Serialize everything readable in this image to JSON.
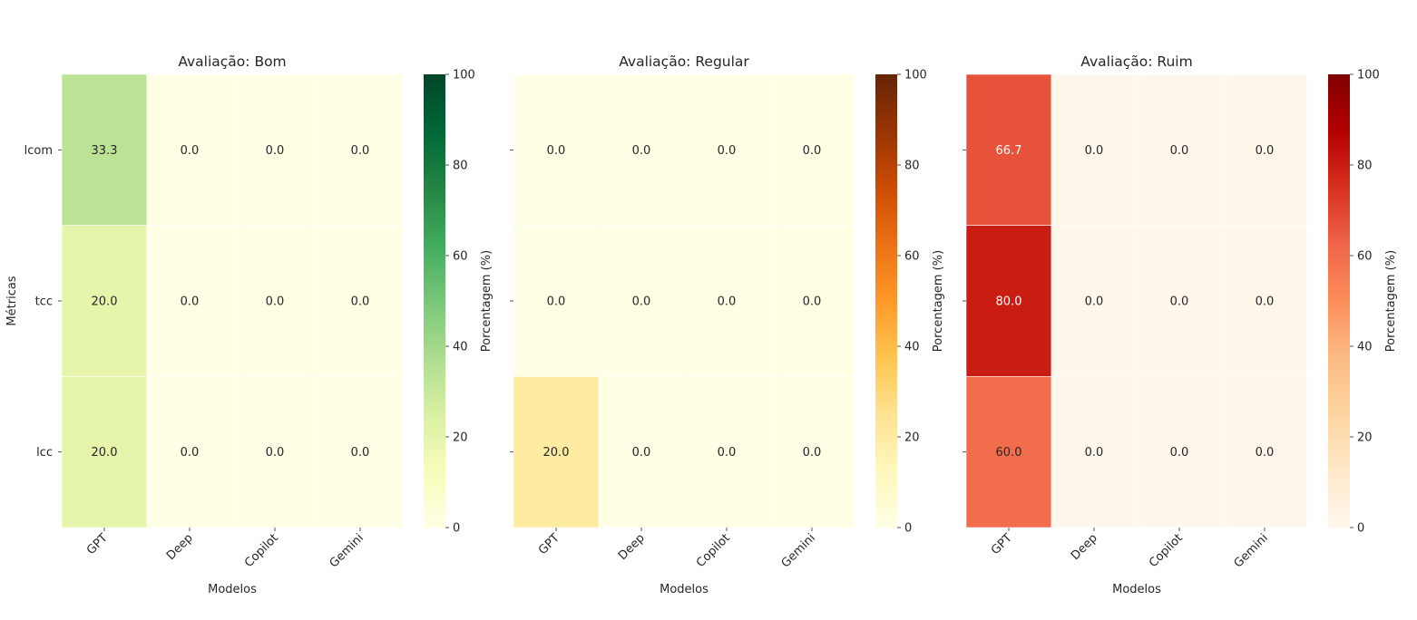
{
  "chart_data": [
    {
      "type": "heatmap",
      "title": "Avaliação: Bom",
      "xlabel": "Modelos",
      "ylabel": "Métricas",
      "x_categories": [
        "GPT",
        "Deep",
        "Copilot",
        "Gemini"
      ],
      "y_categories": [
        "lcom",
        "tcc",
        "lcc"
      ],
      "values": [
        [
          33.3,
          0.0,
          0.0,
          0.0
        ],
        [
          20.0,
          0.0,
          0.0,
          0.0
        ],
        [
          20.0,
          0.0,
          0.0,
          0.0
        ]
      ],
      "colormap": "YlGn",
      "colorbar": {
        "label": "Porcentagem (%)",
        "range": [
          0,
          100
        ],
        "ticks": [
          0,
          20,
          40,
          60,
          80,
          100
        ]
      },
      "value_format": "0.0"
    },
    {
      "type": "heatmap",
      "title": "Avaliação: Regular",
      "xlabel": "Modelos",
      "ylabel": "",
      "x_categories": [
        "GPT",
        "Deep",
        "Copilot",
        "Gemini"
      ],
      "y_categories": [
        "lcom",
        "tcc",
        "lcc"
      ],
      "values": [
        [
          0.0,
          0.0,
          0.0,
          0.0
        ],
        [
          0.0,
          0.0,
          0.0,
          0.0
        ],
        [
          20.0,
          0.0,
          0.0,
          0.0
        ]
      ],
      "colormap": "YlOrBr",
      "colorbar": {
        "label": "Porcentagem (%)",
        "range": [
          0,
          100
        ],
        "ticks": [
          0,
          20,
          40,
          60,
          80,
          100
        ]
      },
      "value_format": "0.0"
    },
    {
      "type": "heatmap",
      "title": "Avaliação: Ruim",
      "xlabel": "Modelos",
      "ylabel": "",
      "x_categories": [
        "GPT",
        "Deep",
        "Copilot",
        "Gemini"
      ],
      "y_categories": [
        "lcom",
        "tcc",
        "lcc"
      ],
      "values": [
        [
          66.7,
          0.0,
          0.0,
          0.0
        ],
        [
          80.0,
          0.0,
          0.0,
          0.0
        ],
        [
          60.0,
          0.0,
          0.0,
          0.0
        ]
      ],
      "colormap": "OrRd",
      "colorbar": {
        "label": "Porcentagem (%)",
        "range": [
          0,
          100
        ],
        "ticks": [
          0,
          20,
          40,
          60,
          80,
          100
        ]
      },
      "value_format": "0.0"
    }
  ],
  "colormaps": {
    "YlGn": [
      "#ffffe5",
      "#f7fcb9",
      "#d9f0a3",
      "#addd8e",
      "#78c679",
      "#41ab5d",
      "#238443",
      "#006837",
      "#004529"
    ],
    "YlOrBr": [
      "#ffffe5",
      "#fff7bc",
      "#fee391",
      "#fec44f",
      "#fe9929",
      "#ec7014",
      "#cc4c02",
      "#993404",
      "#662506"
    ],
    "OrRd": [
      "#fff7ec",
      "#fee8c8",
      "#fdd49e",
      "#fdbb84",
      "#fc8d59",
      "#ef6548",
      "#d7301f",
      "#b30000",
      "#7f0000"
    ]
  }
}
